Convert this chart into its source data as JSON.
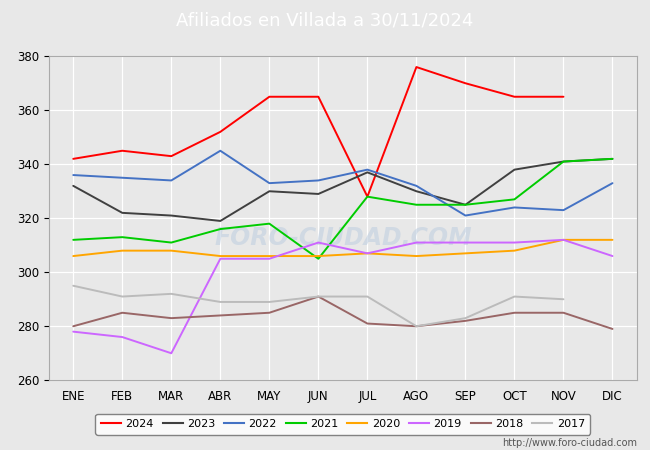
{
  "title": "Afiliados en Villada a 30/11/2024",
  "ylim": [
    260,
    380
  ],
  "yticks": [
    260,
    280,
    300,
    320,
    340,
    360,
    380
  ],
  "months": [
    "ENE",
    "FEB",
    "MAR",
    "ABR",
    "MAY",
    "JUN",
    "JUL",
    "AGO",
    "SEP",
    "OCT",
    "NOV",
    "DIC"
  ],
  "series": {
    "2024": {
      "color": "#ff0000",
      "data": [
        342,
        345,
        343,
        352,
        365,
        365,
        328,
        376,
        370,
        365,
        365,
        null
      ]
    },
    "2023": {
      "color": "#404040",
      "data": [
        332,
        322,
        321,
        319,
        330,
        329,
        337,
        330,
        325,
        338,
        341,
        342
      ]
    },
    "2022": {
      "color": "#4472c4",
      "data": [
        336,
        335,
        334,
        345,
        333,
        334,
        338,
        332,
        321,
        324,
        323,
        333
      ]
    },
    "2021": {
      "color": "#00cc00",
      "data": [
        312,
        313,
        311,
        316,
        318,
        305,
        328,
        325,
        325,
        327,
        341,
        342
      ]
    },
    "2020": {
      "color": "#ffa500",
      "data": [
        306,
        308,
        308,
        306,
        306,
        306,
        307,
        306,
        307,
        308,
        312,
        312
      ]
    },
    "2019": {
      "color": "#cc66ff",
      "data": [
        278,
        276,
        270,
        305,
        305,
        311,
        307,
        311,
        311,
        311,
        312,
        306
      ]
    },
    "2018": {
      "color": "#996666",
      "data": [
        280,
        285,
        283,
        284,
        285,
        291,
        281,
        280,
        282,
        285,
        285,
        279
      ]
    },
    "2017": {
      "color": "#bbbbbb",
      "data": [
        295,
        291,
        292,
        289,
        289,
        291,
        291,
        280,
        283,
        291,
        290,
        null
      ]
    }
  },
  "legend_order": [
    "2024",
    "2023",
    "2022",
    "2021",
    "2020",
    "2019",
    "2018",
    "2017"
  ],
  "footer_url": "http://www.foro-ciudad.com",
  "bg_color": "#e8e8e8",
  "plot_bg_color": "#e8e8e8",
  "grid_color": "#ffffff",
  "header_bg": "#5b9bd5",
  "header_text_color": "#ffffff"
}
